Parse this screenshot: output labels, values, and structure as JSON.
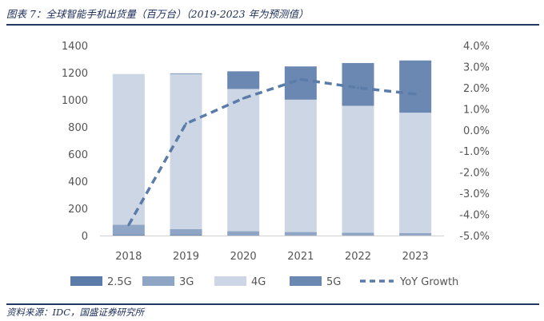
{
  "header": {
    "title": "图表 7：全球智能手机出货量（百万台）（2019-2023 年为预测值）"
  },
  "footer": {
    "source": "资料来源：IDC，国盛证券研究所"
  },
  "chart_data": {
    "type": "bar",
    "stacked": true,
    "categories": [
      "2018",
      "2019",
      "2020",
      "2021",
      "2022",
      "2023"
    ],
    "series": [
      {
        "name": "2.5G",
        "values": [
          5,
          3,
          2,
          1,
          1,
          1
        ],
        "color": "#5b7ca8"
      },
      {
        "name": "3G",
        "values": [
          75,
          45,
          30,
          25,
          20,
          18
        ],
        "color": "#8ea5c5"
      },
      {
        "name": "4G",
        "values": [
          1110,
          1142,
          1048,
          975,
          935,
          886
        ],
        "color": "#cdd6e4"
      },
      {
        "name": "5G",
        "values": [
          0,
          5,
          130,
          245,
          315,
          385
        ],
        "color": "#6b88b2"
      },
      {
        "name": "YoY Growth",
        "type": "line",
        "axis": "right",
        "style": "dashed",
        "values": [
          -4.5,
          0.3,
          1.5,
          2.4,
          2.0,
          1.7
        ],
        "color": "#5b7ca8"
      }
    ],
    "y_left": {
      "min": 0,
      "max": 1400,
      "ticks": [
        "0",
        "200",
        "400",
        "600",
        "800",
        "1000",
        "1200",
        "1400"
      ]
    },
    "y_right": {
      "min": -5.0,
      "max": 4.0,
      "ticks": [
        "-5.0%",
        "-4.0%",
        "-3.0%",
        "-2.0%",
        "-1.0%",
        "0.0%",
        "1.0%",
        "2.0%",
        "3.0%",
        "4.0%"
      ]
    },
    "legend": {
      "position": "bottom",
      "labels": [
        "2.5G",
        "3G",
        "4G",
        "5G",
        "YoY Growth"
      ]
    },
    "grid": false
  }
}
